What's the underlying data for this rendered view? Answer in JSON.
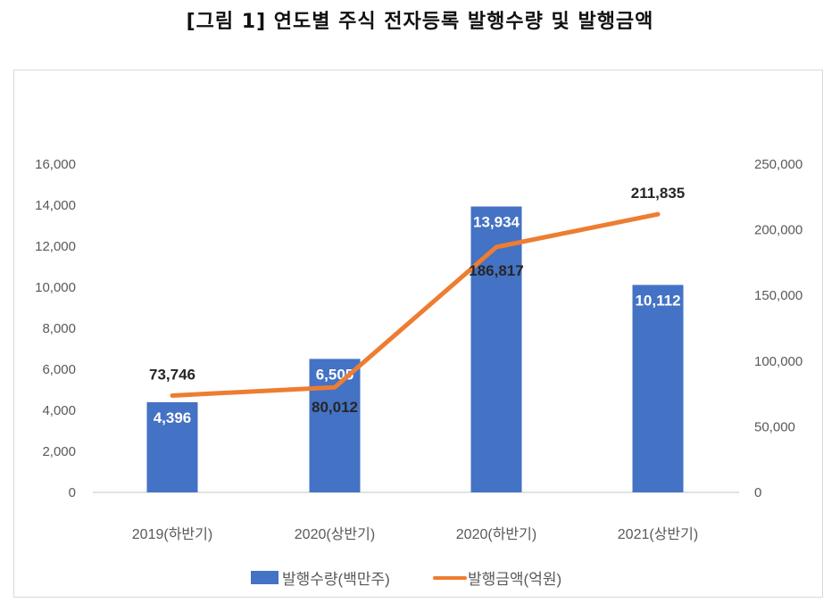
{
  "title": "[그림 1] 연도별 주식 전자등록 발행수량 및 발행금액",
  "colors": {
    "bar": "#4472C4",
    "line": "#ED7D31",
    "axis_text": "#595959",
    "gridline": "#d9d9d9"
  },
  "chart_data": {
    "type": "bar+line",
    "title": "[그림 1] 연도별 주식 전자등록 발행수량 및 발행금액",
    "categories": [
      "2019(하반기)",
      "2020(상반기)",
      "2020(하반기)",
      "2021(상반기)"
    ],
    "series": [
      {
        "name": "발행수량(백만주)",
        "type": "bar",
        "axis": "left",
        "values": [
          4396,
          6505,
          13934,
          10112
        ],
        "labels": [
          "4,396",
          "6,505",
          "13,934",
          "10,112"
        ]
      },
      {
        "name": "발행금액(억원)",
        "type": "line",
        "axis": "right",
        "values": [
          73746,
          80012,
          186817,
          211835
        ],
        "labels": [
          "73,746",
          "80,012",
          "186,817",
          "211,835"
        ]
      }
    ],
    "left_axis": {
      "range": [
        0,
        16000
      ],
      "ticks": [
        "0",
        "2,000",
        "4,000",
        "6,000",
        "8,000",
        "10,000",
        "12,000",
        "14,000",
        "16,000"
      ]
    },
    "right_axis": {
      "range": [
        0,
        250000
      ],
      "ticks": [
        "0",
        "50,000",
        "100,000",
        "150,000",
        "200,000",
        "250,000"
      ]
    },
    "xlabel": "",
    "ylabel": "",
    "grid": false,
    "legend_position": "bottom"
  },
  "legend": [
    {
      "label": "발행수량(백만주)"
    },
    {
      "label": "발행금액(억원)"
    }
  ]
}
